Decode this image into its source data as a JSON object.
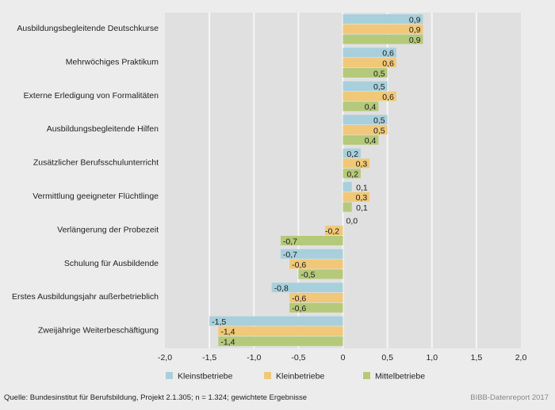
{
  "chart_data": {
    "type": "bar",
    "orientation": "horizontal",
    "categories": [
      "Ausbildungsbegleitende Deutschkurse",
      "Mehrwöchiges Praktikum",
      "Externe Erledigung von Formalitäten",
      "Ausbildungsbegleitende Hilfen",
      "Zusätzlicher Berufsschulunterricht",
      "Vermittlung geeigneter Flüchtlinge",
      "Verlängerung der Probezeit",
      "Schulung für Ausbildende",
      "Erstes Ausbildungsjahr außerbetrieblich",
      "Zweijährige Weiterbeschäftigung"
    ],
    "series": [
      {
        "name": "Kleinstbetriebe",
        "color": "#a8d0dc",
        "values": [
          0.9,
          0.6,
          0.5,
          0.5,
          0.2,
          0.1,
          0.0,
          -0.7,
          -0.8,
          -1.5
        ],
        "labels": [
          "0,9",
          "0,6",
          "0,5",
          "0,5",
          "0,2",
          "0,1",
          "0,0",
          "-0,7",
          "-0,8",
          "-1,5"
        ]
      },
      {
        "name": "Kleinbetriebe",
        "color": "#f0c878",
        "values": [
          0.9,
          0.6,
          0.6,
          0.5,
          0.3,
          0.3,
          -0.2,
          -0.6,
          -0.6,
          -1.4
        ],
        "labels": [
          "0,9",
          "0,6",
          "0,6",
          "0,5",
          "0,3",
          "0,3",
          "-0,2",
          "-0,6",
          "-0,6",
          "-1,4"
        ]
      },
      {
        "name": "Mittelbetriebe",
        "color": "#b5c97a",
        "values": [
          0.9,
          0.5,
          0.4,
          0.4,
          0.2,
          0.1,
          -0.7,
          -0.5,
          -0.6,
          -1.4
        ],
        "labels": [
          "0,9",
          "0,5",
          "0,4",
          "0,4",
          "0,2",
          "0,1",
          "-0,7",
          "-0,5",
          "-0,6",
          "-1,4"
        ]
      }
    ],
    "xlim": [
      -2.0,
      2.0
    ],
    "xticks": [
      -2.0,
      -1.5,
      -1.0,
      -0.5,
      0,
      0.5,
      1.0,
      1.5,
      2.0
    ],
    "xtick_labels": [
      "-2,0",
      "-1,5",
      "-1,0",
      "-0,5",
      "0",
      "0,5",
      "1,0",
      "1,5",
      "2,0"
    ],
    "title": "",
    "xlabel": "",
    "ylabel": "",
    "grid": true,
    "legend_position": "bottom"
  },
  "footer": {
    "source": "Quelle: Bundesinstitut für Berufsbildung, Projekt 2.1.305; n = 1.324; gewichtete Ergebnisse",
    "publication": "BIBB-Datenreport 2017"
  }
}
